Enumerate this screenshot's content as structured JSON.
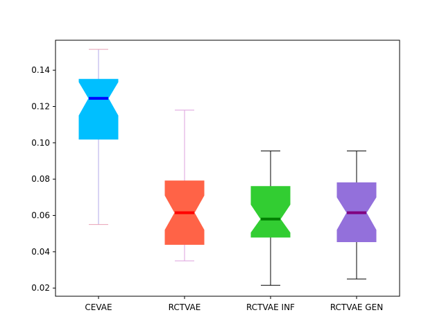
{
  "chart_data": {
    "type": "box",
    "notched": true,
    "grid": false,
    "title": "",
    "xlabel": "",
    "ylabel": "",
    "ylim": [
      0.0155,
      0.1565
    ],
    "yticks": [
      0.02,
      0.04,
      0.06,
      0.08,
      0.1,
      0.12,
      0.14
    ],
    "ytick_labels": [
      "0.02",
      "0.04",
      "0.06",
      "0.08",
      "0.10",
      "0.12",
      "0.14"
    ],
    "categories": [
      "CEVAE",
      "RCTVAE",
      "RCTVAE INF",
      "RCTVAE GEN"
    ],
    "boxes": [
      {
        "label": "CEVAE",
        "whisker_low": 0.055,
        "q1": 0.102,
        "notch_low": 0.115,
        "median": 0.1245,
        "notch_high": 0.1335,
        "q3": 0.135,
        "whisker_high": 0.1515,
        "fill": "#00bfff",
        "median_color": "#0000ff",
        "whisker_color": "#b0a8e8",
        "cap_color": "#e8a0b4"
      },
      {
        "label": "RCTVAE",
        "whisker_low": 0.035,
        "q1": 0.044,
        "notch_low": 0.052,
        "median": 0.0615,
        "notch_high": 0.071,
        "q3": 0.079,
        "whisker_high": 0.118,
        "fill": "#ff6347",
        "median_color": "#ff0000",
        "whisker_color": "#dda0dd",
        "cap_color": "#dda0dd"
      },
      {
        "label": "RCTVAE INF",
        "whisker_low": 0.0215,
        "q1": 0.048,
        "notch_low": 0.0505,
        "median": 0.058,
        "notch_high": 0.066,
        "q3": 0.076,
        "whisker_high": 0.0955,
        "fill": "#32cd32",
        "median_color": "#008000",
        "whisker_color": "#000000",
        "cap_color": "#000000"
      },
      {
        "label": "RCTVAE GEN",
        "whisker_low": 0.025,
        "q1": 0.0455,
        "notch_low": 0.052,
        "median": 0.0615,
        "notch_high": 0.07,
        "q3": 0.078,
        "whisker_high": 0.0955,
        "fill": "#9370db",
        "median_color": "#800080",
        "whisker_color": "#000000",
        "cap_color": "#000000"
      }
    ]
  }
}
